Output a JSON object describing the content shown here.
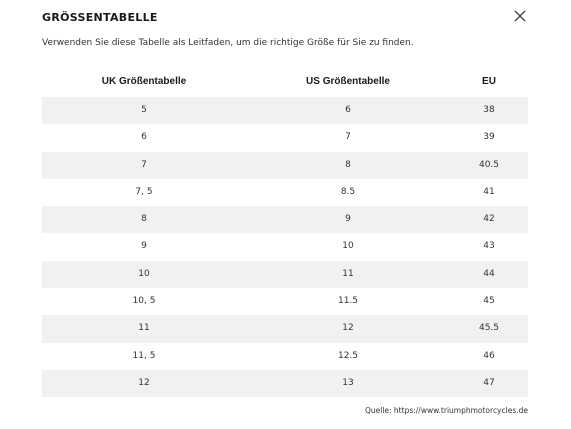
{
  "modal": {
    "title": "GRÖSSENTABELLE",
    "subtitle": "Verwenden Sie diese Tabelle als Leitfaden, um die richtige Größe für Sie zu finden.",
    "close_icon": "close-icon"
  },
  "table": {
    "headers": [
      "UK Größentabelle",
      "US Größentabelle",
      "EU"
    ],
    "rows": [
      [
        "5",
        "6",
        "38"
      ],
      [
        "6",
        "7",
        "39"
      ],
      [
        "7",
        "8",
        "40.5"
      ],
      [
        "7, 5",
        "8.5",
        "41"
      ],
      [
        "8",
        "9",
        "42"
      ],
      [
        "9",
        "10",
        "43"
      ],
      [
        "10",
        "11",
        "44"
      ],
      [
        "10, 5",
        "11.5",
        "45"
      ],
      [
        "11",
        "12",
        "45.5"
      ],
      [
        "11, 5",
        "12.5",
        "46"
      ],
      [
        "12",
        "13",
        "47"
      ]
    ]
  },
  "footer": {
    "source": "Quelle: https://www.triumphmotorcycles.de"
  },
  "colors": {
    "row_shade": "#f1f1f1",
    "text": "#222222"
  }
}
